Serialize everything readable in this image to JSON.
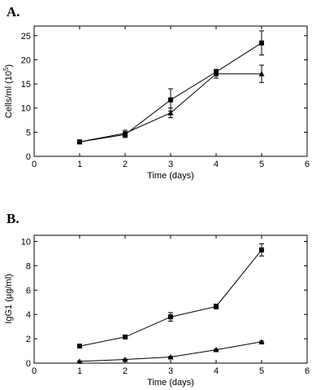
{
  "chart_data": [
    {
      "type": "line",
      "panel_label": "A.",
      "xlabel": "Time (days)",
      "ylabel": "Cells/ml (10",
      "ylabel_sup": "5",
      "ylabel_end": ")",
      "xlim": [
        0,
        6
      ],
      "ylim": [
        0,
        27
      ],
      "xticks": [
        "0",
        "1",
        "2",
        "3",
        "4",
        "5",
        "6"
      ],
      "yticks": [
        "0",
        "5",
        "10",
        "15",
        "20",
        "25"
      ],
      "grid": false,
      "series": [
        {
          "marker": "square",
          "x": [
            1,
            2,
            3,
            4,
            5
          ],
          "y": [
            3.0,
            4.5,
            11.7,
            17.5,
            23.5
          ],
          "err": [
            0.2,
            0.6,
            2.3,
            0.5,
            2.5
          ]
        },
        {
          "marker": "triangle",
          "x": [
            1,
            2,
            3,
            4,
            5
          ],
          "y": [
            3.0,
            4.8,
            9.0,
            17.1,
            17.1
          ],
          "err": [
            0.2,
            0.6,
            1.0,
            0.9,
            1.8
          ]
        }
      ]
    },
    {
      "type": "line",
      "panel_label": "B.",
      "xlabel": "Time (days)",
      "ylabel": "IgG1 (µg/ml)",
      "xlim": [
        0,
        6
      ],
      "ylim": [
        0,
        10.5
      ],
      "xticks": [
        "0",
        "1",
        "2",
        "3",
        "4",
        "5",
        "6"
      ],
      "yticks": [
        "0",
        "2",
        "4",
        "6",
        "8",
        "10"
      ],
      "grid": false,
      "series": [
        {
          "marker": "square",
          "x": [
            1,
            2,
            3,
            4,
            5
          ],
          "y": [
            1.4,
            2.15,
            3.8,
            4.65,
            9.3
          ],
          "err": [
            0.08,
            0.1,
            0.35,
            0.2,
            0.5
          ]
        },
        {
          "marker": "triangle",
          "x": [
            1,
            2,
            3,
            4,
            5
          ],
          "y": [
            0.15,
            0.3,
            0.5,
            1.1,
            1.75
          ],
          "err": [
            0.03,
            0.03,
            0.05,
            0.05,
            0.07
          ]
        }
      ]
    }
  ]
}
